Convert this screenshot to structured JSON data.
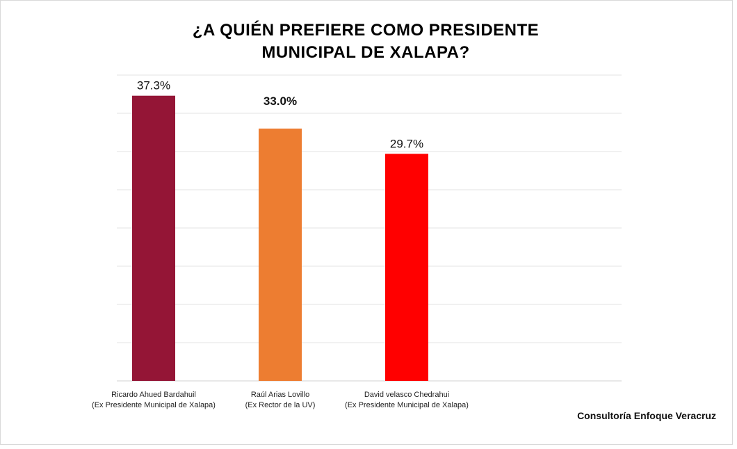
{
  "chart_data": {
    "type": "bar",
    "title": [
      "¿A QUIÉN PREFIERE COMO PRESIDENTE",
      "MUNICIPAL DE XALAPA?"
    ],
    "categories": [
      {
        "name": "Ricardo Ahued Bardahuil",
        "note": "(Ex Presidente Municipal de Xalapa)"
      },
      {
        "name": "Raúl Arias Lovillo",
        "note": "(Ex Rector de la UV)"
      },
      {
        "name": "David velasco Chedrahui",
        "note": "(Ex Presidente Municipal de Xalapa)"
      }
    ],
    "values": [
      37.3,
      33.0,
      29.7
    ],
    "value_labels": [
      "37.3%",
      "33.0%",
      "29.7%"
    ],
    "highlighted_label_index": 1,
    "colors": [
      "#941536",
      "#ED7D31",
      "#FF0000"
    ],
    "ylim": [
      0,
      40
    ],
    "gridlines": [
      0,
      5,
      10,
      15,
      20,
      25,
      30,
      35,
      40
    ],
    "grid": true,
    "xlabel": "",
    "ylabel": ""
  },
  "source": "Consultoría Enfoque Veracruz"
}
